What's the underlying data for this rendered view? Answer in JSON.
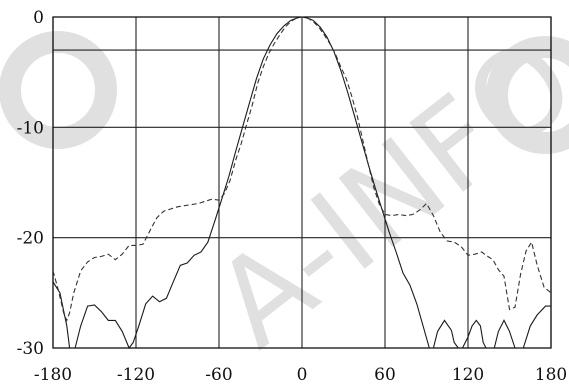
{
  "chart_data": {
    "type": "line",
    "title": "",
    "xlabel": "",
    "ylabel": "",
    "xlim": [
      -180,
      180
    ],
    "ylim": [
      -30,
      0
    ],
    "x_ticks": [
      -180,
      -120,
      -60,
      0,
      60,
      120,
      180
    ],
    "y_ticks": [
      0,
      -10,
      -20,
      -30
    ],
    "grid": true,
    "series": [
      {
        "style": "solid",
        "points": [
          [
            -180,
            -24
          ],
          [
            -175,
            -25
          ],
          [
            -170,
            -28
          ],
          [
            -168,
            -30
          ],
          [
            -164,
            -30
          ],
          [
            -160,
            -28
          ],
          [
            -155,
            -26.2
          ],
          [
            -150,
            -26.1
          ],
          [
            -145,
            -26.7
          ],
          [
            -140,
            -27.5
          ],
          [
            -135,
            -27.5
          ],
          [
            -130,
            -28.5
          ],
          [
            -125,
            -30
          ],
          [
            -122,
            -29.5
          ],
          [
            -118,
            -28
          ],
          [
            -113,
            -26
          ],
          [
            -108,
            -25.3
          ],
          [
            -103,
            -25.8
          ],
          [
            -98,
            -25.5
          ],
          [
            -93,
            -24
          ],
          [
            -88,
            -22.5
          ],
          [
            -83,
            -22.3
          ],
          [
            -78,
            -21.6
          ],
          [
            -73,
            -21.3
          ],
          [
            -68,
            -20.4
          ],
          [
            -63,
            -18.5
          ],
          [
            -58,
            -16.5
          ],
          [
            -53,
            -14.5
          ],
          [
            -48,
            -12.2
          ],
          [
            -43,
            -10
          ],
          [
            -38,
            -7.8
          ],
          [
            -33,
            -5.6
          ],
          [
            -28,
            -3.8
          ],
          [
            -23,
            -2.5
          ],
          [
            -18,
            -1.5
          ],
          [
            -13,
            -0.8
          ],
          [
            -8,
            -0.3
          ],
          [
            -4,
            -0.1
          ],
          [
            0,
            0
          ],
          [
            4,
            -0.1
          ],
          [
            8,
            -0.3
          ],
          [
            13,
            -0.9
          ],
          [
            18,
            -1.8
          ],
          [
            23,
            -3.1
          ],
          [
            28,
            -4.8
          ],
          [
            33,
            -6.8
          ],
          [
            38,
            -9
          ],
          [
            43,
            -11.2
          ],
          [
            48,
            -13.4
          ],
          [
            53,
            -15.5
          ],
          [
            58,
            -17.5
          ],
          [
            63,
            -19.5
          ],
          [
            68,
            -21.3
          ],
          [
            73,
            -23.2
          ],
          [
            78,
            -24.3
          ],
          [
            83,
            -26
          ],
          [
            88,
            -28.2
          ],
          [
            92,
            -30
          ],
          [
            95,
            -30
          ],
          [
            98,
            -28.5
          ],
          [
            103,
            -27.5
          ],
          [
            108,
            -28.4
          ],
          [
            110,
            -29.5
          ],
          [
            113,
            -30
          ],
          [
            116,
            -30
          ],
          [
            120,
            -29
          ],
          [
            123,
            -28
          ],
          [
            126,
            -27.5
          ],
          [
            129,
            -28
          ],
          [
            131,
            -29.5
          ],
          [
            133,
            -30
          ],
          [
            139,
            -30
          ],
          [
            142,
            -28.5
          ],
          [
            146,
            -27.5
          ],
          [
            150,
            -28.5
          ],
          [
            154,
            -30
          ],
          [
            160,
            -30
          ],
          [
            165,
            -28
          ],
          [
            170,
            -27
          ],
          [
            176,
            -26.2
          ],
          [
            180,
            -26.2
          ]
        ]
      },
      {
        "style": "dashed",
        "points": [
          [
            -180,
            -23
          ],
          [
            -176,
            -24.8
          ],
          [
            -172,
            -27
          ],
          [
            -170,
            -27.5
          ],
          [
            -168,
            -26.8
          ],
          [
            -165,
            -25
          ],
          [
            -160,
            -23
          ],
          [
            -155,
            -22.2
          ],
          [
            -150,
            -21.8
          ],
          [
            -145,
            -21.7
          ],
          [
            -140,
            -21.5
          ],
          [
            -135,
            -22
          ],
          [
            -130,
            -21.5
          ],
          [
            -125,
            -20.7
          ],
          [
            -120,
            -20.7
          ],
          [
            -115,
            -20.6
          ],
          [
            -110,
            -19.4
          ],
          [
            -105,
            -18.2
          ],
          [
            -100,
            -17.6
          ],
          [
            -95,
            -17.4
          ],
          [
            -90,
            -17.2
          ],
          [
            -85,
            -17.1
          ],
          [
            -80,
            -17
          ],
          [
            -75,
            -16.9
          ],
          [
            -70,
            -16.7
          ],
          [
            -65,
            -16.5
          ],
          [
            -60,
            -16.6
          ],
          [
            -56,
            -16
          ],
          [
            -52,
            -14.8
          ],
          [
            -48,
            -13
          ],
          [
            -44,
            -11.5
          ],
          [
            -40,
            -9.7
          ],
          [
            -36,
            -8
          ],
          [
            -32,
            -6
          ],
          [
            -28,
            -4.5
          ],
          [
            -24,
            -3.3
          ],
          [
            -20,
            -2.4
          ],
          [
            -16,
            -1.6
          ],
          [
            -12,
            -0.9
          ],
          [
            -8,
            -0.4
          ],
          [
            -4,
            -0.1
          ],
          [
            0,
            0
          ],
          [
            4,
            -0.1
          ],
          [
            8,
            -0.4
          ],
          [
            12,
            -0.9
          ],
          [
            16,
            -1.6
          ],
          [
            20,
            -2.4
          ],
          [
            24,
            -3.3
          ],
          [
            28,
            -4.5
          ],
          [
            32,
            -5.6
          ],
          [
            36,
            -7.2
          ],
          [
            40,
            -9
          ],
          [
            44,
            -11.2
          ],
          [
            48,
            -13.4
          ],
          [
            52,
            -15.5
          ],
          [
            56,
            -17
          ],
          [
            60,
            -17.9
          ],
          [
            65,
            -18
          ],
          [
            70,
            -17.9
          ],
          [
            75,
            -18
          ],
          [
            80,
            -17.9
          ],
          [
            85,
            -17.5
          ],
          [
            90,
            -16.9
          ],
          [
            95,
            -18
          ],
          [
            100,
            -19.5
          ],
          [
            105,
            -20.3
          ],
          [
            110,
            -20.4
          ],
          [
            115,
            -20.8
          ],
          [
            120,
            -21.6
          ],
          [
            125,
            -21.5
          ],
          [
            130,
            -21.3
          ],
          [
            133,
            -21.6
          ],
          [
            138,
            -22
          ],
          [
            142,
            -22.9
          ],
          [
            146,
            -23.5
          ],
          [
            150,
            -26.5
          ],
          [
            154,
            -26.3
          ],
          [
            158,
            -23.3
          ],
          [
            162,
            -21.2
          ],
          [
            166,
            -20.4
          ],
          [
            170,
            -22.5
          ],
          [
            175,
            -24.5
          ],
          [
            180,
            -25
          ]
        ]
      }
    ]
  },
  "watermark": {
    "text": "A-INFO",
    "color": "#e0e0e0"
  }
}
